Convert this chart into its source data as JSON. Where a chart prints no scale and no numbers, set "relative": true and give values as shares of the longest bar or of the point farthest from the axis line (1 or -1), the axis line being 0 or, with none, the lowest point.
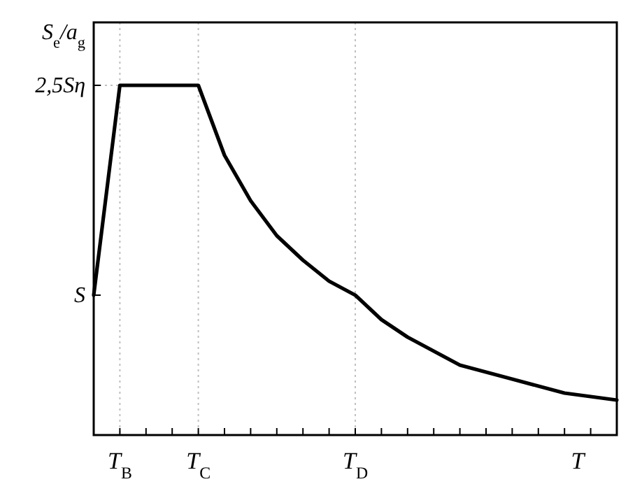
{
  "chart_data": {
    "type": "line",
    "xlabel": "T",
    "ylabel": "S$_{e}$/a$_{g}$",
    "relative": true,
    "categories": [
      null,
      "T$_{B}$",
      null,
      null,
      "T$_{C}$",
      null,
      null,
      null,
      null,
      null,
      "T$_{D}$",
      null,
      null,
      null,
      null,
      null,
      null,
      null,
      null,
      null,
      null
    ],
    "series": [
      {
        "color": "#000000",
        "values": [
          0.4,
          1,
          1,
          1,
          1,
          0.8,
          0.67,
          0.57,
          0.5,
          0.44,
          0.4,
          0.33,
          0.28,
          0.24,
          0.2,
          0.18,
          0.16,
          0.14,
          0.12,
          0.11,
          0.1
        ]
      }
    ],
    "ref_lines": [
      {
        "axis": "y",
        "value": 0.4,
        "label": "S"
      },
      {
        "axis": "y",
        "value": 1,
        "label": "2,5Sη",
        "color": "#c0c0c0",
        "line_style": "dotted"
      },
      {
        "axis": "x",
        "value": "T$_{B}$",
        "color": "#c0c0c0",
        "line_style": "dotted"
      },
      {
        "axis": "x",
        "value": "T$_{C}$",
        "color": "#c0c0c0",
        "line_style": "dotted"
      },
      {
        "axis": "x",
        "value": "T$_{D}$",
        "color": "#c0c0c0",
        "line_style": "dotted"
      }
    ],
    "grid": false,
    "marker": "none",
    "line_style": "solid"
  }
}
